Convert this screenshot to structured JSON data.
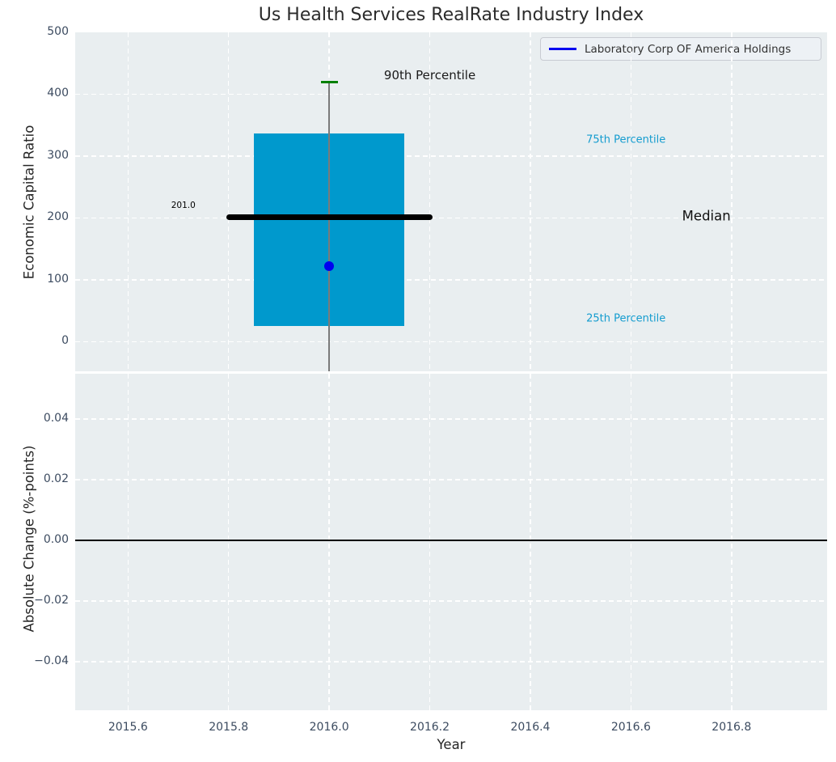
{
  "title": "Us Health Services RealRate Industry Index",
  "legend": {
    "label": "Laboratory Corp OF America Holdings",
    "line_color": "#0000f0"
  },
  "colors": {
    "panel_bg": "#e9eef0",
    "grid": "#ffffff",
    "box_fill": "#0099cd",
    "median_line": "#000000",
    "whisker": "#7a7a7a",
    "cap": "#008000",
    "marker": "#0000f0",
    "zero_line": "#000000",
    "tick_text": "#3c4b60",
    "cyan_text": "#149ccf"
  },
  "chart_data": [
    {
      "type": "box",
      "panel": "top",
      "title": "Us Health Services RealRate Industry Index",
      "xlabel": "Year",
      "ylabel": "Economic Capital Ratio",
      "xlim": [
        2015.495,
        2016.99
      ],
      "ylim": [
        -48,
        500
      ],
      "grid": "white dashed",
      "legend_position": "upper right",
      "x_tick_values": [
        2015.6,
        2015.8,
        2016.0,
        2016.2,
        2016.4,
        2016.6,
        2016.8
      ],
      "x_tick_labels": [
        "2015.6",
        "2015.8",
        "2016.0",
        "2016.2",
        "2016.4",
        "2016.6",
        "2016.8"
      ],
      "y_tick_values": [
        0,
        100,
        200,
        300,
        400,
        500
      ],
      "y_tick_labels": [
        "0",
        "100",
        "200",
        "300",
        "400",
        "500"
      ],
      "box": {
        "x_center": 2016.0,
        "p25": 25,
        "median": 201.0,
        "p75": 336,
        "p90": 420,
        "whisker_low_clipped_at": -48,
        "box_half_width": 0.15,
        "median_half_width": 0.205,
        "cap_half_width": 0.017
      },
      "series": [
        {
          "name": "Laboratory Corp OF America Holdings",
          "type": "scatter",
          "x": [
            2016.0
          ],
          "y": [
            122
          ],
          "color": "#0000f0"
        }
      ],
      "annotations": [
        {
          "id": "median-value-label",
          "text": "201.0",
          "x": 2015.71,
          "y": 220,
          "color": "#000000",
          "size": 10.5
        },
        {
          "id": "p90-label",
          "text": "90th Percentile",
          "x": 2016.2,
          "y": 431,
          "color": "#1a1a1a",
          "size": 15
        },
        {
          "id": "p75-label",
          "text": "75th Percentile",
          "x": 2016.59,
          "y": 326,
          "color": "#149ccf",
          "size": 13
        },
        {
          "id": "median-label",
          "text": "Median",
          "x": 2016.75,
          "y": 203,
          "color": "#111111",
          "size": 16.5
        },
        {
          "id": "p25-label",
          "text": "25th Percentile",
          "x": 2016.59,
          "y": 37,
          "color": "#149ccf",
          "size": 13
        }
      ]
    },
    {
      "type": "line",
      "panel": "bottom",
      "xlabel": "Year",
      "ylabel": "Absolute Change (%-points)",
      "xlim": [
        2015.495,
        2016.99
      ],
      "ylim": [
        -0.056,
        0.055
      ],
      "grid": "white dashed",
      "x_tick_values": [
        2015.6,
        2015.8,
        2016.0,
        2016.2,
        2016.4,
        2016.6,
        2016.8
      ],
      "x_tick_labels": [
        "2015.6",
        "2015.8",
        "2016.0",
        "2016.2",
        "2016.4",
        "2016.6",
        "2016.8"
      ],
      "y_tick_values": [
        0.04,
        0.02,
        0.0,
        -0.02,
        -0.04
      ],
      "y_tick_labels": [
        "0.04",
        "0.02",
        "0.00",
        "−0.02",
        "−0.04"
      ],
      "zero_line": 0.0,
      "series": []
    }
  ]
}
